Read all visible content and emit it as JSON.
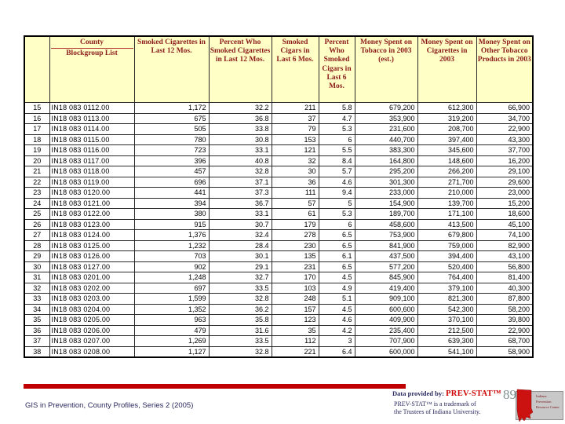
{
  "table": {
    "header": {
      "corner": "",
      "county_top": "County",
      "county_bottom": "Blockgroup List",
      "smoked_cigarettes": "Smoked Cigarettes in Last 12 Mos.",
      "pct_smoked_cigarettes": "Percent Who Smoked Cigarettes in Last 12 Mos.",
      "smoked_cigars": "Smoked Cigars in Last 6 Mos.",
      "pct_smoked_cigars": "Percent Who Smoked Cigars in Last 6 Mos.",
      "money_tobacco": "Money Spent on Tobacco in 2003 (est.)",
      "money_cigarettes": "Money Spent on Cigarettes in 2003",
      "money_other": "Money Spent on Other Tobacco Products in 2003"
    },
    "rows": [
      [
        "15",
        "IN18 083 0112.00",
        "1,172",
        "32.2",
        "211",
        "5.8",
        "679,200",
        "612,300",
        "66,900"
      ],
      [
        "16",
        "IN18 083 0113.00",
        "675",
        "36.8",
        "37",
        "4.7",
        "353,900",
        "319,200",
        "34,700"
      ],
      [
        "17",
        "IN18 083 0114.00",
        "505",
        "33.8",
        "79",
        "5.3",
        "231,600",
        "208,700",
        "22,900"
      ],
      [
        "18",
        "IN18 083 0115.00",
        "780",
        "30.8",
        "153",
        "6",
        "440,700",
        "397,400",
        "43,300"
      ],
      [
        "19",
        "IN18 083 0116.00",
        "723",
        "33.1",
        "121",
        "5.5",
        "383,300",
        "345,600",
        "37,700"
      ],
      [
        "20",
        "IN18 083 0117.00",
        "396",
        "40.8",
        "32",
        "8.4",
        "164,800",
        "148,600",
        "16,200"
      ],
      [
        "21",
        "IN18 083 0118.00",
        "457",
        "32.8",
        "30",
        "5.7",
        "295,200",
        "266,200",
        "29,100"
      ],
      [
        "22",
        "IN18 083 0119.00",
        "696",
        "37.1",
        "36",
        "4.6",
        "301,300",
        "271,700",
        "29,600"
      ],
      [
        "23",
        "IN18 083 0120.00",
        "441",
        "37.3",
        "111",
        "9.4",
        "233,000",
        "210,000",
        "23,000"
      ],
      [
        "24",
        "IN18 083 0121.00",
        "394",
        "36.7",
        "57",
        "5",
        "154,900",
        "139,700",
        "15,200"
      ],
      [
        "25",
        "IN18 083 0122.00",
        "380",
        "33.1",
        "61",
        "5.3",
        "189,700",
        "171,100",
        "18,600"
      ],
      [
        "26",
        "IN18 083 0123.00",
        "915",
        "30.7",
        "179",
        "6",
        "458,600",
        "413,500",
        "45,100"
      ],
      [
        "27",
        "IN18 083 0124.00",
        "1,376",
        "32.4",
        "278",
        "6.5",
        "753,900",
        "679,800",
        "74,100"
      ],
      [
        "28",
        "IN18 083 0125.00",
        "1,232",
        "28.4",
        "230",
        "6.5",
        "841,900",
        "759,000",
        "82,900"
      ],
      [
        "29",
        "IN18 083 0126.00",
        "703",
        "30.1",
        "135",
        "6.1",
        "437,500",
        "394,400",
        "43,100"
      ],
      [
        "30",
        "IN18 083 0127.00",
        "902",
        "29.1",
        "231",
        "6.5",
        "577,200",
        "520,400",
        "56,800"
      ],
      [
        "31",
        "IN18 083 0201.00",
        "1,248",
        "32.7",
        "170",
        "4.5",
        "845,900",
        "764,400",
        "81,400"
      ],
      [
        "32",
        "IN18 083 0202.00",
        "697",
        "33.5",
        "103",
        "4.9",
        "419,400",
        "379,100",
        "40,300"
      ],
      [
        "33",
        "IN18 083 0203.00",
        "1,599",
        "32.8",
        "248",
        "5.1",
        "909,100",
        "821,300",
        "87,800"
      ],
      [
        "34",
        "IN18 083 0204.00",
        "1,352",
        "36.2",
        "157",
        "4.5",
        "600,600",
        "542,300",
        "58,200"
      ],
      [
        "35",
        "IN18 083 0205.00",
        "963",
        "35.8",
        "123",
        "4.6",
        "409,900",
        "370,100",
        "39,800"
      ],
      [
        "36",
        "IN18 083 0206.00",
        "479",
        "31.6",
        "35",
        "4.2",
        "235,400",
        "212,500",
        "22,900"
      ],
      [
        "37",
        "IN18 083 0207.00",
        "1,269",
        "33.5",
        "112",
        "3",
        "707,900",
        "639,300",
        "68,700"
      ],
      [
        "38",
        "IN18 083 0208.00",
        "1,127",
        "32.8",
        "221",
        "6.4",
        "600,000",
        "541,100",
        "58,900"
      ]
    ]
  },
  "footer": {
    "left_text": "GIS in Prevention, County Profiles, Series 2 (2005)",
    "data_provided_label": "Data provided by:",
    "brand": "PREV-STAT™",
    "trademark_line1": "PREV-STAT™ is a trademark of",
    "trademark_line2": "the Trustees of Indiana University.",
    "page_number": "89",
    "logo_text": "Indiana Prevention Resource Center"
  },
  "colors": {
    "header_bg": "#ffffc6",
    "header_text": "#8b1c1c",
    "accent_bar": "#c00000",
    "brand_red": "#cc0000",
    "footer_navy": "#2a2a60"
  }
}
